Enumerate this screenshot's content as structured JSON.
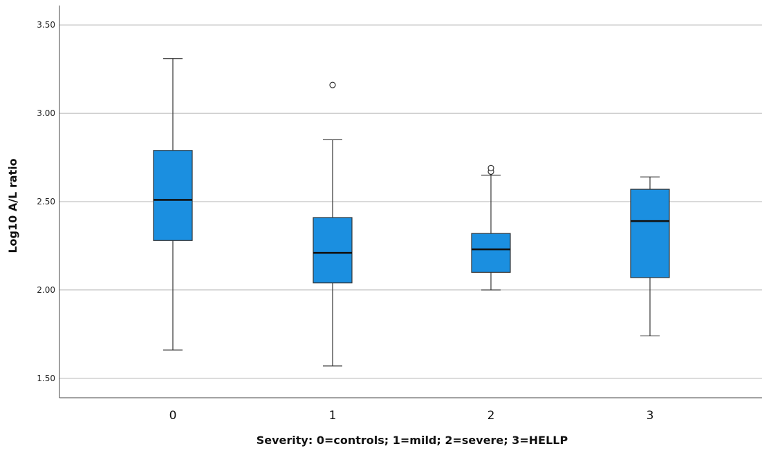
{
  "chart_data": {
    "type": "boxplot",
    "xlabel": "Severity: 0=controls; 1=mild; 2=severe; 3=HELLP",
    "ylabel": "Log10 A/L ratio",
    "ylim": [
      1.39,
      3.61
    ],
    "yticks": [
      "1.50",
      "2.00",
      "2.50",
      "3.00",
      "3.50"
    ],
    "grid": true,
    "box_color": "#1b8fe0",
    "categories": [
      "0",
      "1",
      "2",
      "3"
    ],
    "boxes": [
      {
        "category": "0",
        "whisker_low": 1.66,
        "q1": 2.28,
        "median": 2.51,
        "q3": 2.79,
        "whisker_high": 3.31,
        "outliers": []
      },
      {
        "category": "1",
        "whisker_low": 1.57,
        "q1": 2.04,
        "median": 2.21,
        "q3": 2.41,
        "whisker_high": 2.85,
        "outliers": [
          3.16
        ]
      },
      {
        "category": "2",
        "whisker_low": 2.0,
        "q1": 2.1,
        "median": 2.23,
        "q3": 2.32,
        "whisker_high": 2.65,
        "outliers": [
          2.67,
          2.69
        ]
      },
      {
        "category": "3",
        "whisker_low": 1.74,
        "q1": 2.07,
        "median": 2.39,
        "q3": 2.57,
        "whisker_high": 2.64,
        "outliers": []
      }
    ]
  }
}
